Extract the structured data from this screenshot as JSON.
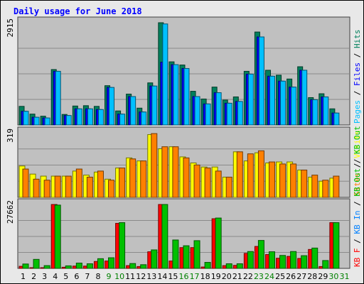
{
  "title": "Daily usage for June 2018",
  "colors": {
    "title": "#0000ff",
    "label": "#000000",
    "weekend_label": "#008000",
    "hits": "#00805c",
    "files": "#0000ff",
    "pages": "#00c0ff",
    "visits": "#ffff00",
    "sites": "#ff8000",
    "kbin": "#0080ff",
    "kbout": "#00c000",
    "kbf": "#ff0000",
    "panel": "#c0c0c0"
  },
  "chart_data": [
    {
      "type": "bar",
      "title": "Daily usage for June 2018",
      "max_label": "2915",
      "ylim": [
        0,
        2915
      ],
      "grid": true,
      "x": [
        1,
        2,
        3,
        4,
        5,
        6,
        7,
        8,
        9,
        10,
        11,
        12,
        13,
        14,
        15,
        16,
        17,
        18,
        19,
        20,
        21,
        22,
        23,
        24,
        25,
        26,
        27,
        28,
        29,
        30,
        31
      ],
      "weekend_days": [
        9,
        10,
        16,
        17,
        23,
        24,
        30,
        31
      ],
      "legend": [
        "Pages",
        "Files",
        "Hits"
      ],
      "series": [
        {
          "name": "Hits",
          "color": "#00805c",
          "values": [
            530,
            310,
            250,
            1580,
            300,
            540,
            550,
            530,
            1120,
            400,
            880,
            480,
            1200,
            2940,
            1800,
            1710,
            960,
            740,
            1080,
            710,
            800,
            1530,
            2650,
            1560,
            1420,
            1310,
            1660,
            780,
            890,
            460,
            0
          ]
        },
        {
          "name": "Files",
          "color": "#0000ff",
          "values": [
            390,
            220,
            200,
            1530,
            270,
            460,
            460,
            440,
            1070,
            310,
            810,
            370,
            1110,
            1790,
            1720,
            1610,
            810,
            600,
            920,
            620,
            670,
            1450,
            2510,
            1390,
            1250,
            1080,
            1560,
            720,
            800,
            340,
            0
          ]
        },
        {
          "name": "Pages",
          "color": "#00c0ff",
          "values": [
            390,
            220,
            200,
            1530,
            270,
            460,
            460,
            440,
            1070,
            310,
            810,
            370,
            1110,
            2880,
            1720,
            1610,
            810,
            600,
            920,
            620,
            670,
            1450,
            2510,
            1390,
            1250,
            1080,
            1560,
            720,
            800,
            340,
            0
          ]
        }
      ]
    },
    {
      "type": "bar",
      "max_label": "319",
      "ylim": [
        0,
        319
      ],
      "grid": true,
      "x": [
        1,
        2,
        3,
        4,
        5,
        6,
        7,
        8,
        9,
        10,
        11,
        12,
        13,
        14,
        15,
        16,
        17,
        18,
        19,
        20,
        21,
        22,
        23,
        24,
        25,
        26,
        27,
        28,
        29,
        30,
        31
      ],
      "legend": [
        "Sites",
        "Visits"
      ],
      "series": [
        {
          "name": "Visits",
          "color": "#ffff00",
          "values": [
            155,
            115,
            105,
            105,
            105,
            130,
            110,
            125,
            90,
            145,
            195,
            180,
            310,
            240,
            250,
            200,
            170,
            150,
            150,
            100,
            225,
            180,
            220,
            170,
            175,
            175,
            135,
            100,
            80,
            95,
            0
          ]
        },
        {
          "name": "Sites",
          "color": "#ff8000",
          "values": [
            140,
            90,
            85,
            105,
            105,
            140,
            100,
            130,
            85,
            145,
            190,
            180,
            315,
            250,
            250,
            195,
            160,
            145,
            130,
            100,
            225,
            215,
            230,
            175,
            165,
            165,
            135,
            110,
            85,
            105,
            0
          ]
        }
      ]
    },
    {
      "type": "bar",
      "max_label": "27662",
      "ylim": [
        0,
        27662
      ],
      "grid": true,
      "x": [
        1,
        2,
        3,
        4,
        5,
        6,
        7,
        8,
        9,
        10,
        11,
        12,
        13,
        14,
        15,
        16,
        17,
        18,
        19,
        20,
        21,
        22,
        23,
        24,
        25,
        26,
        27,
        28,
        29,
        30,
        31
      ],
      "legend": [
        "KB F",
        "KB In",
        "KB Out",
        "KB Out"
      ],
      "series": [
        {
          "name": "KB F",
          "color": "#ff0000",
          "values": [
            900,
            300,
            200,
            27800,
            500,
            1000,
            1000,
            3000,
            3200,
            19500,
            1200,
            800,
            7200,
            28800,
            3200,
            9000,
            9000,
            600,
            21500,
            1200,
            1300,
            6500,
            9500,
            6000,
            4400,
            5200,
            4300,
            8200,
            800,
            19800,
            0
          ]
        },
        {
          "name": "KB Out",
          "color": "#00c000",
          "values": [
            1900,
            3900,
            1200,
            27400,
            1100,
            2300,
            2000,
            4200,
            4600,
            19800,
            2100,
            1600,
            8000,
            28800,
            12300,
            9800,
            12000,
            2600,
            21800,
            2000,
            2000,
            7300,
            12100,
            7200,
            5600,
            7300,
            5500,
            8800,
            3400,
            19800,
            0
          ]
        }
      ]
    }
  ],
  "legend_labels": {
    "top": [
      {
        "text": "Pages",
        "color": "#00c0ff"
      },
      {
        "text": " / ",
        "color": "#000000"
      },
      {
        "text": "Files",
        "color": "#0000ff"
      },
      {
        "text": " / ",
        "color": "#000000"
      },
      {
        "text": "Hits",
        "color": "#00805c"
      }
    ],
    "middle": [
      {
        "text": "Sites",
        "color": "#ff8000"
      },
      {
        "text": " / ",
        "color": "#000000"
      },
      {
        "text": "Visits",
        "color": "#ffff00"
      }
    ],
    "bottom": [
      {
        "text": "KB F",
        "color": "#ff0000"
      },
      {
        "text": " / ",
        "color": "#000000"
      },
      {
        "text": "KB In",
        "color": "#0080ff"
      },
      {
        "text": " / ",
        "color": "#000000"
      },
      {
        "text": "KB Out",
        "color": "#00c000"
      },
      {
        "text": " / ",
        "color": "#000000"
      },
      {
        "text": "KB Out",
        "color": "#00c000"
      }
    ]
  }
}
